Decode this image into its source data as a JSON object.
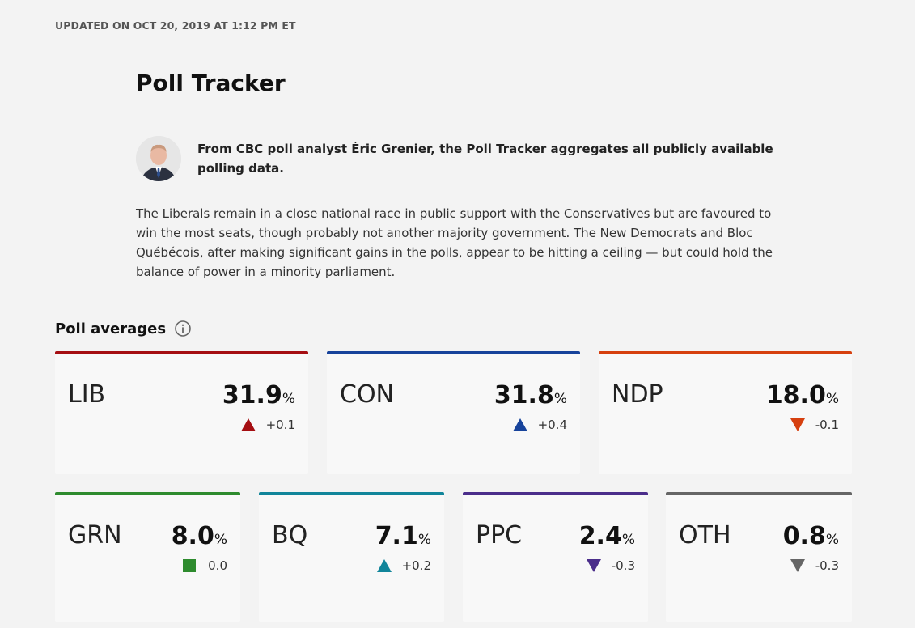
{
  "updated": "UPDATED ON OCT 20, 2019 AT 1:12 PM ET",
  "title": "Poll Tracker",
  "author_blurb": "From CBC poll analyst Éric Grenier, the Poll Tracker aggregates all publicly available polling data.",
  "intro": "The Liberals remain in a close national race in public support with the Conservatives but are favoured to win the most seats, though probably not another majority government. The New Democrats and Bloc Québécois, after making significant gains in the polls, appear to be hitting a ceiling — but could hold the balance of power in a minority parliament.",
  "section_title": "Poll averages",
  "info_icon": "info-icon",
  "parties": [
    {
      "code": "LIB",
      "value": "31.9",
      "unit": "%",
      "change": "+0.1",
      "trend": "up",
      "color": "#a50e12"
    },
    {
      "code": "CON",
      "value": "31.8",
      "unit": "%",
      "change": "+0.4",
      "trend": "up",
      "color": "#17439b"
    },
    {
      "code": "NDP",
      "value": "18.0",
      "unit": "%",
      "change": "-0.1",
      "trend": "down",
      "color": "#d6400f"
    },
    {
      "code": "GRN",
      "value": "8.0",
      "unit": "%",
      "change": "0.0",
      "trend": "flat",
      "color": "#2e8b2e"
    },
    {
      "code": "BQ",
      "value": "7.1",
      "unit": "%",
      "change": "+0.2",
      "trend": "up",
      "color": "#11859a"
    },
    {
      "code": "PPC",
      "value": "2.4",
      "unit": "%",
      "change": "-0.3",
      "trend": "down",
      "color": "#4b2e8b"
    },
    {
      "code": "OTH",
      "value": "0.8",
      "unit": "%",
      "change": "-0.3",
      "trend": "down",
      "color": "#666666"
    }
  ]
}
